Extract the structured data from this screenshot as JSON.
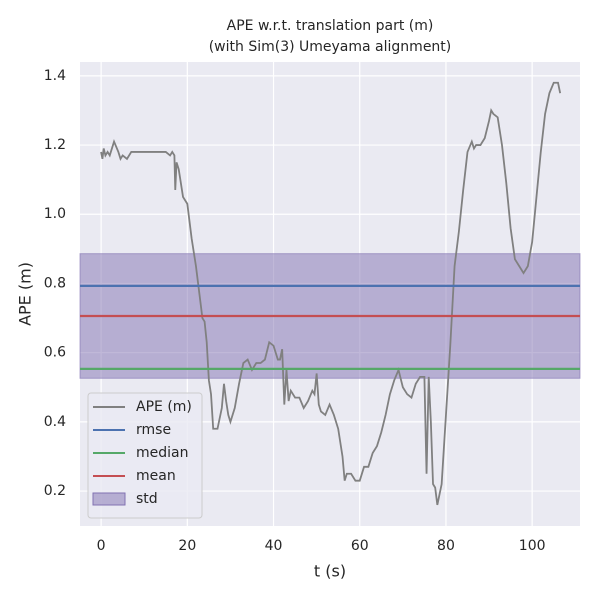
{
  "chart_data": {
    "type": "line",
    "title": "APE w.r.t. translation part (m)",
    "subtitle": "(with Sim(3) Umeyama alignment)",
    "x_label": "t (s)",
    "y_label": "APE (m)",
    "xlim": [
      -4.9,
      111.1
    ],
    "ylim": [
      0.099,
      1.44
    ],
    "xticks": [
      0,
      20,
      40,
      60,
      80,
      100
    ],
    "yticks": [
      0.2,
      0.4,
      0.6,
      0.8,
      {
        "value": 1,
        "label": "1.0"
      },
      1.2,
      1.4
    ],
    "grid": true,
    "legend": "lower left",
    "series": [
      {
        "name": "APE (m)",
        "color": "#808080",
        "x": [
          0,
          0.3,
          0.6,
          1,
          1.5,
          2,
          3,
          4,
          4.5,
          5,
          6,
          7,
          8,
          10,
          12,
          15,
          16,
          16.5,
          17,
          17.2,
          17.5,
          18,
          19,
          20,
          21,
          22,
          23,
          23.5,
          24,
          24.5,
          25,
          25.5,
          26,
          27,
          28,
          28.5,
          29,
          29.5,
          30,
          31,
          32,
          33,
          34,
          35,
          36,
          37,
          38,
          39,
          40,
          41,
          41.5,
          42,
          42.5,
          43,
          43.5,
          44,
          45,
          46,
          47,
          48,
          49,
          49.5,
          50,
          50.5,
          51,
          52,
          53,
          54,
          55,
          56,
          56.5,
          57,
          58,
          59,
          60,
          61,
          62,
          63,
          64,
          65,
          66,
          67,
          68,
          69,
          70,
          71,
          72,
          73,
          74,
          75,
          75.5,
          76,
          76.5,
          77,
          77.5,
          78,
          79,
          80,
          81,
          82,
          83,
          84,
          85,
          86,
          86.5,
          87,
          88,
          89,
          90,
          90.5,
          91,
          92,
          93,
          94,
          95,
          96,
          97,
          98,
          99,
          100,
          101,
          102,
          103,
          104,
          105,
          106,
          106.5
        ],
        "values": [
          1.18,
          1.16,
          1.19,
          1.17,
          1.18,
          1.17,
          1.21,
          1.18,
          1.16,
          1.17,
          1.16,
          1.18,
          1.18,
          1.18,
          1.18,
          1.18,
          1.17,
          1.18,
          1.17,
          1.07,
          1.15,
          1.13,
          1.05,
          1.03,
          0.93,
          0.85,
          0.75,
          0.7,
          0.69,
          0.63,
          0.52,
          0.48,
          0.38,
          0.38,
          0.44,
          0.51,
          0.46,
          0.42,
          0.4,
          0.44,
          0.51,
          0.57,
          0.58,
          0.55,
          0.57,
          0.57,
          0.58,
          0.63,
          0.62,
          0.58,
          0.58,
          0.61,
          0.45,
          0.55,
          0.46,
          0.49,
          0.47,
          0.47,
          0.44,
          0.46,
          0.49,
          0.48,
          0.54,
          0.45,
          0.43,
          0.42,
          0.45,
          0.42,
          0.38,
          0.3,
          0.23,
          0.25,
          0.25,
          0.23,
          0.23,
          0.27,
          0.27,
          0.31,
          0.33,
          0.37,
          0.42,
          0.48,
          0.52,
          0.55,
          0.5,
          0.48,
          0.47,
          0.51,
          0.53,
          0.53,
          0.25,
          0.53,
          0.4,
          0.22,
          0.21,
          0.16,
          0.22,
          0.42,
          0.62,
          0.85,
          0.95,
          1.07,
          1.18,
          1.21,
          1.19,
          1.2,
          1.2,
          1.22,
          1.27,
          1.3,
          1.29,
          1.28,
          1.2,
          1.09,
          0.96,
          0.87,
          0.85,
          0.83,
          0.85,
          0.92,
          1.05,
          1.18,
          1.29,
          1.35,
          1.38,
          1.38,
          1.35
        ]
      }
    ],
    "hlines": [
      {
        "name": "rmse",
        "value": 0.793,
        "color": "#4c72b0"
      },
      {
        "name": "median",
        "value": 0.553,
        "color": "#55a868"
      },
      {
        "name": "mean",
        "value": 0.706,
        "color": "#c44e52"
      }
    ],
    "std": {
      "name": "std",
      "value": 0.18,
      "color": "#8172b2"
    }
  }
}
